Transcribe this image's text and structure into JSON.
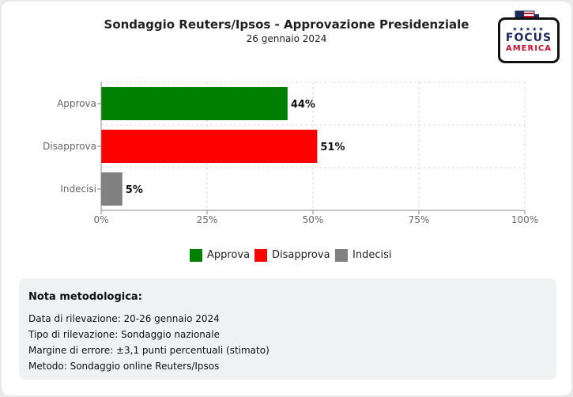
{
  "header": {
    "title": "Sondaggio Reuters/Ipsos - Approvazione Presidenziale",
    "subtitle": "26 gennaio 2024"
  },
  "logo": {
    "line1": "FOCUS",
    "line2": "AMERICA",
    "stars": "★★★★★"
  },
  "chart_data": {
    "type": "bar",
    "orientation": "horizontal",
    "categories": [
      "Approva",
      "Disapprova",
      "Indecisi"
    ],
    "values": [
      44,
      51,
      5
    ],
    "value_labels": [
      "44%",
      "51%",
      "5%"
    ],
    "colors": [
      "#008000",
      "#ff0000",
      "#808080"
    ],
    "xlim": [
      0,
      100
    ],
    "x_ticks": [
      "0%",
      "25%",
      "50%",
      "75%",
      "100%"
    ],
    "grid": true,
    "legend_position": "bottom"
  },
  "legend": [
    {
      "label": "Approva",
      "color": "#008000"
    },
    {
      "label": "Disapprova",
      "color": "#ff0000"
    },
    {
      "label": "Indecisi",
      "color": "#808080"
    }
  ],
  "note": {
    "title": "Nota metodologica:",
    "lines": [
      "Data di rilevazione: 20-26 gennaio 2024",
      "Tipo di rilevazione: Sondaggio nazionale",
      "Margine di errore: ±3,1 punti percentuali (stimato)",
      "Metodo: Sondaggio online Reuters/Ipsos"
    ]
  }
}
